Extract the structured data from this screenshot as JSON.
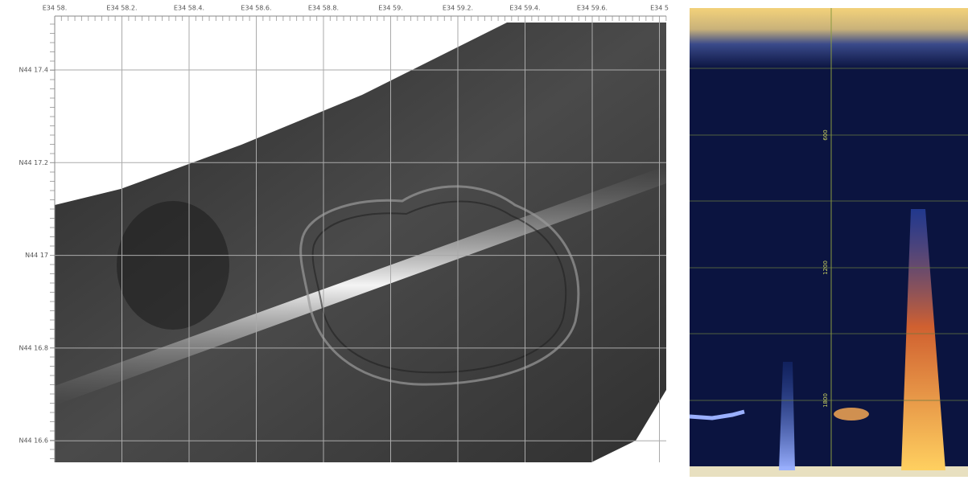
{
  "map": {
    "x_labels": [
      "E34 58.",
      "E34 58.2.",
      "E34 58.4.",
      "E34 58.6.",
      "E34 58.8.",
      "E34 59.",
      "E34 59.2.",
      "E34 59.4.",
      "E34 59.6.",
      "E34 5"
    ],
    "y_labels": [
      "N44 17.4",
      "N44 17.2",
      "N44 17",
      "N44 16.8",
      "N44 16.6"
    ]
  },
  "echogram": {
    "depth_labels": [
      "600",
      "1200",
      "1800"
    ]
  }
}
